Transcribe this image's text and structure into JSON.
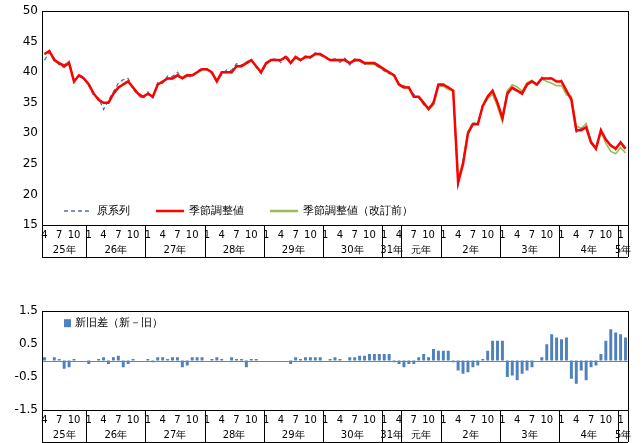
{
  "chart_data": [
    {
      "type": "line",
      "categories": [
        "4",
        null,
        null,
        "7",
        null,
        null,
        "10",
        null,
        null,
        "1",
        null,
        null,
        "4",
        null,
        null,
        "7",
        null,
        null,
        "10",
        null,
        null,
        "1",
        null,
        null,
        "4",
        null,
        null,
        "7",
        null,
        null,
        "10",
        null,
        null,
        "1",
        null,
        null,
        "4",
        null,
        null,
        "7",
        null,
        null,
        "10",
        null,
        null,
        "1",
        null,
        null,
        "4",
        null,
        null,
        "7",
        null,
        null,
        "10",
        null,
        null,
        "1",
        null,
        null,
        "4",
        null,
        null,
        "7",
        null,
        null,
        "10",
        null,
        null,
        "1",
        null,
        null,
        "4",
        null,
        null,
        "7",
        null,
        null,
        "10",
        null,
        null,
        "1",
        null,
        null,
        "4",
        null,
        null,
        "7",
        null,
        null,
        "10",
        null,
        null,
        "1",
        null,
        null,
        "4",
        null,
        null,
        "7",
        null,
        null,
        "10",
        null,
        null,
        "1",
        null,
        null,
        "4",
        null,
        null,
        "7",
        null,
        null,
        "10",
        null,
        null,
        "1",
        null
      ],
      "groups": [
        {
          "label": "25年",
          "months": 9
        },
        {
          "label": "26年",
          "months": 12
        },
        {
          "label": "27年",
          "months": 12
        },
        {
          "label": "28年",
          "months": 12
        },
        {
          "label": "29年",
          "months": 12
        },
        {
          "label": "30年",
          "months": 12
        },
        {
          "label": "31年",
          "months": 4
        },
        {
          "label": "元年",
          "months": 8
        },
        {
          "label": "2年",
          "months": 12
        },
        {
          "label": "3年",
          "months": 12
        },
        {
          "label": "4年",
          "months": 12
        },
        {
          "label": "5年",
          "months": 2
        }
      ],
      "series": [
        {
          "name": "原系列",
          "color": "#4f6fb0",
          "line_style": "dashed",
          "values": [
            42,
            43.2,
            42.3,
            41.2,
            40.8,
            41.8,
            38.3,
            39.6,
            39.2,
            37.8,
            36.2,
            35.8,
            33.9,
            35.4,
            36.8,
            38.2,
            38.8,
            39,
            37.2,
            36.3,
            35.6,
            36.8,
            35.8,
            38.3,
            38.2,
            39.4,
            39.3,
            40,
            39,
            39.4,
            39.2,
            40.2,
            40.6,
            40.4,
            39.8,
            38.7,
            39.6,
            40.4,
            40.3,
            41.4,
            41.2,
            41.3,
            42.2,
            40.8,
            39.8,
            41.2,
            42.1,
            42.2,
            41.6,
            42.8,
            41.8,
            42.3,
            41.9,
            42.7,
            42.3,
            43.2,
            42.8,
            42.3,
            42.1,
            42.2,
            41.6,
            42.3,
            41.2,
            42.2,
            41.9,
            41.3,
            41.7,
            41.3,
            40.8,
            40.2,
            39.8,
            39.7,
            37.7,
            37.8,
            37.4,
            36.4,
            35.8,
            34.7,
            34.2,
            35.2,
            37.8,
            37.8,
            37.6,
            36.8,
            21.5,
            25.3,
            30.2,
            31.8,
            31.4,
            34.6,
            36.2,
            36.8,
            35.2,
            32.3,
            36.7,
            37.3,
            36.8,
            36.8,
            37.8,
            38.7,
            37.8,
            39.2,
            38.8,
            39.2,
            38.3,
            38.7,
            36.8,
            35.7,
            30.2,
            30.8,
            30.8,
            28.8,
            27.3,
            30.7,
            28.8,
            28.2,
            27.3,
            28.7,
            27.2
          ]
        },
        {
          "name": "季節調整値",
          "color": "#ff0000",
          "line_style": "solid",
          "values": [
            43,
            43.5,
            42,
            41.5,
            41,
            41.5,
            38.5,
            39.5,
            39,
            38,
            36.5,
            35.5,
            35,
            35,
            36.5,
            37.5,
            38,
            38.5,
            37.5,
            36.5,
            36,
            36.5,
            36,
            38,
            38.5,
            39,
            39,
            39.5,
            39,
            39.5,
            39.5,
            40,
            40.5,
            40.5,
            40,
            38.5,
            40,
            40,
            40,
            41,
            41,
            41.5,
            42,
            41,
            40,
            41.5,
            42,
            42,
            42,
            42.5,
            41.5,
            42.5,
            42,
            42.5,
            42.5,
            43,
            43,
            42.5,
            42,
            42,
            42,
            42,
            41.5,
            42,
            42,
            41.5,
            41.5,
            41.5,
            41,
            40.5,
            40,
            39.5,
            38,
            37.5,
            37.5,
            36,
            36,
            35,
            34,
            35,
            38,
            38,
            37.5,
            37,
            22,
            25,
            30,
            31.5,
            31.5,
            34.5,
            36,
            37,
            35,
            32.5,
            36.5,
            37.5,
            37,
            36.5,
            38,
            38.5,
            38,
            39,
            39,
            39,
            38.5,
            38.5,
            37,
            35.5,
            30.5,
            30.5,
            31,
            28.5,
            27.5,
            30.5,
            29,
            28,
            27.5,
            28.5,
            27.5
          ]
        },
        {
          "name": "季節調整値（改訂前）",
          "color": "#9bbb59",
          "line_style": "solid",
          "values": [
            42.9,
            43.5,
            41.9,
            41.45,
            41.25,
            41.7,
            38.45,
            39.5,
            39,
            38.1,
            36.5,
            35.45,
            34.9,
            35.1,
            36.4,
            37.35,
            38.2,
            38.6,
            37.45,
            36.5,
            36,
            36.45,
            36.05,
            37.9,
            38.4,
            38.95,
            38.9,
            39.4,
            39.2,
            39.65,
            39.4,
            39.9,
            40.4,
            40.5,
            39.95,
            38.4,
            39.95,
            40,
            39.9,
            40.95,
            40.95,
            41.7,
            41.95,
            40.95,
            40,
            41.5,
            42,
            42,
            42,
            42.5,
            41.6,
            42.4,
            41.95,
            42.4,
            42.4,
            42.9,
            42.9,
            42.5,
            41.95,
            41.9,
            41.95,
            42,
            41.4,
            41.9,
            41.85,
            41.35,
            41.3,
            41.3,
            40.8,
            40.3,
            39.8,
            39.55,
            38.1,
            37.7,
            37.6,
            36.1,
            35.9,
            34.8,
            33.9,
            34.65,
            37.7,
            37.7,
            37.2,
            37.05,
            22.3,
            25.4,
            30.35,
            31.7,
            31.65,
            34.45,
            35.7,
            36.4,
            34.4,
            31.9,
            37,
            37.95,
            37.6,
            36.9,
            38.3,
            38.7,
            38,
            38.9,
            38.5,
            38.2,
            37.8,
            37.85,
            36.3,
            36.05,
            31.2,
            30.8,
            31.6,
            28.7,
            27.65,
            30.3,
            28.4,
            27.05,
            26.65,
            27.7,
            26.8
          ]
        }
      ],
      "ylim": [
        15,
        50
      ],
      "yticks": [
        15,
        20,
        25,
        30,
        35,
        40,
        45,
        50
      ],
      "grid": false,
      "legend": "lower left"
    },
    {
      "type": "bar",
      "categories": [
        "4",
        null,
        null,
        "7",
        null,
        null,
        "10",
        null,
        null,
        "1",
        null,
        null,
        "4",
        null,
        null,
        "7",
        null,
        null,
        "10",
        null,
        null,
        "1",
        null,
        null,
        "4",
        null,
        null,
        "7",
        null,
        null,
        "10",
        null,
        null,
        "1",
        null,
        null,
        "4",
        null,
        null,
        "7",
        null,
        null,
        "10",
        null,
        null,
        "1",
        null,
        null,
        "4",
        null,
        null,
        "7",
        null,
        null,
        "10",
        null,
        null,
        "1",
        null,
        null,
        "4",
        null,
        null,
        "7",
        null,
        null,
        "10",
        null,
        null,
        "1",
        null,
        null,
        "4",
        null,
        null,
        "7",
        null,
        null,
        "10",
        null,
        null,
        "1",
        null,
        null,
        "4",
        null,
        null,
        "7",
        null,
        null,
        "10",
        null,
        null,
        "1",
        null,
        null,
        "4",
        null,
        null,
        "7",
        null,
        null,
        "10",
        null,
        null,
        "1",
        null,
        null,
        "4",
        null,
        null,
        "7",
        null,
        null,
        "10",
        null,
        null,
        "1",
        null
      ],
      "groups": [
        {
          "label": "25年",
          "months": 9
        },
        {
          "label": "26年",
          "months": 12
        },
        {
          "label": "27年",
          "months": 12
        },
        {
          "label": "28年",
          "months": 12
        },
        {
          "label": "29年",
          "months": 12
        },
        {
          "label": "30年",
          "months": 12
        },
        {
          "label": "31年",
          "months": 4
        },
        {
          "label": "元年",
          "months": 8
        },
        {
          "label": "2年",
          "months": 12
        },
        {
          "label": "3年",
          "months": 12
        },
        {
          "label": "4年",
          "months": 12
        },
        {
          "label": "5年",
          "months": 2
        }
      ],
      "series": [
        {
          "name": "新旧差（新－旧）",
          "color": "#4f81bd",
          "values": [
            0.1,
            0,
            0.1,
            0.05,
            -0.25,
            -0.2,
            0.05,
            0,
            0,
            -0.1,
            0,
            0.05,
            0.1,
            -0.1,
            0.1,
            0.15,
            -0.2,
            -0.1,
            0.05,
            0,
            0,
            0.05,
            -0.05,
            0.1,
            0.1,
            0.05,
            0.1,
            0.1,
            -0.2,
            -0.15,
            0.1,
            0.1,
            0.1,
            0,
            0.05,
            0.1,
            0.05,
            0,
            0.1,
            0.05,
            0.05,
            -0.2,
            0.05,
            0.05,
            0,
            0,
            0,
            0,
            0,
            0,
            -0.1,
            0.1,
            0.05,
            0.1,
            0.1,
            0.1,
            0.1,
            0,
            0.05,
            0.1,
            0.05,
            0,
            0.1,
            0.1,
            0.15,
            0.15,
            0.2,
            0.2,
            0.2,
            0.2,
            0.2,
            -0.05,
            -0.1,
            -0.2,
            -0.1,
            -0.1,
            0.1,
            0.2,
            0.1,
            0.35,
            0.3,
            0.3,
            0.3,
            -0.05,
            -0.3,
            -0.4,
            -0.35,
            -0.2,
            -0.15,
            0.05,
            0.3,
            0.6,
            0.6,
            0.6,
            -0.5,
            -0.45,
            -0.6,
            -0.4,
            -0.3,
            -0.2,
            0,
            0.1,
            0.5,
            0.8,
            0.7,
            0.65,
            0.7,
            -0.55,
            -0.7,
            -0.3,
            -0.6,
            -0.2,
            -0.15,
            0.2,
            0.6,
            0.95,
            0.85,
            0.8,
            0.7
          ]
        }
      ],
      "ylim": [
        -1.5,
        1.5
      ],
      "yticks": [
        -1.5,
        -0.5,
        0.5,
        1.5
      ],
      "grid": false,
      "legend": "upper left"
    }
  ]
}
